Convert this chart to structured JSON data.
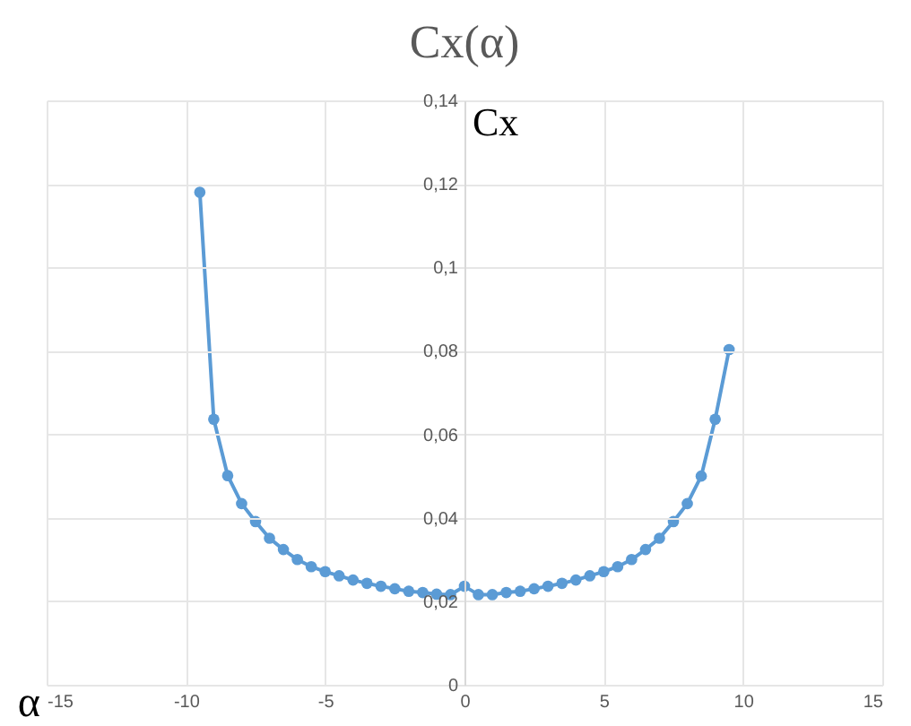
{
  "chart_data": {
    "type": "line",
    "title": "Cx(α)",
    "xlabel": "α",
    "ylabel": "Cx",
    "x": [
      -9.5,
      -9,
      -8.5,
      -8,
      -7.5,
      -7,
      -6.5,
      -6,
      -5.5,
      -5,
      -4.5,
      -4,
      -3.5,
      -3,
      -2.5,
      -2,
      -1.5,
      -1,
      -0.5,
      0,
      0.5,
      1,
      1.5,
      2,
      2.5,
      3,
      3.5,
      4,
      4.5,
      5,
      5.5,
      6,
      6.5,
      7,
      7.5,
      8,
      8.5,
      9,
      9.5
    ],
    "series": [
      {
        "color": "#5b9bd5",
        "values": [
          0.118,
          0.0636,
          0.0501,
          0.0434,
          0.0391,
          0.0351,
          0.0324,
          0.03,
          0.0283,
          0.0271,
          0.0261,
          0.0251,
          0.0243,
          0.0236,
          0.023,
          0.0224,
          0.0221,
          0.0217,
          0.0216,
          0.0236,
          0.0216,
          0.0216,
          0.0221,
          0.0224,
          0.023,
          0.0236,
          0.0243,
          0.0251,
          0.0261,
          0.0271,
          0.0283,
          0.03,
          0.0324,
          0.0351,
          0.0391,
          0.0434,
          0.05,
          0.0636,
          0.0803
        ]
      }
    ],
    "xlim": [
      -15,
      15
    ],
    "xticks": [
      -15,
      -10,
      -5,
      0,
      5,
      10,
      15
    ],
    "ylim": [
      0,
      0.14
    ],
    "yticks": [
      {
        "value": 0,
        "label": "0"
      },
      {
        "value": 0.02,
        "label": "0,02"
      },
      {
        "value": 0.04,
        "label": "0,04"
      },
      {
        "value": 0.06,
        "label": "0,06"
      },
      {
        "value": 0.08,
        "label": "0,08"
      },
      {
        "value": 0.1,
        "label": "0,1"
      },
      {
        "value": 0.12,
        "label": "0,12"
      },
      {
        "value": 0.14,
        "label": "0,14"
      }
    ],
    "grid": true,
    "legend": false,
    "marker": "circle",
    "line_style": "solid"
  }
}
